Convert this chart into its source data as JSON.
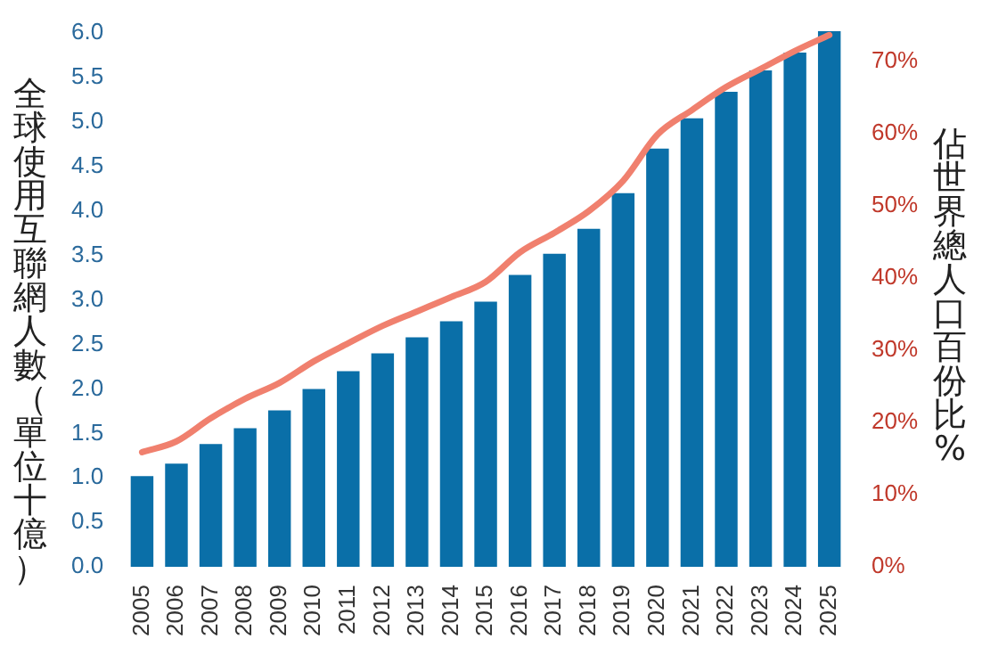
{
  "chart_data": {
    "type": "bar",
    "ylabel": "全球使用互聯網人數（單位十億）",
    "y2label": "佔世界總人口百份比%",
    "categories": [
      "2005",
      "2006",
      "2007",
      "2008",
      "2009",
      "2010",
      "2011",
      "2012",
      "2013",
      "2014",
      "2015",
      "2016",
      "2017",
      "2018",
      "2019",
      "2020",
      "2021",
      "2022",
      "2023",
      "2024",
      "2025"
    ],
    "series": [
      {
        "color": "#0a6fa8",
        "values": [
          1.02,
          1.16,
          1.38,
          1.56,
          1.76,
          2.0,
          2.2,
          2.4,
          2.58,
          2.76,
          2.98,
          3.28,
          3.52,
          3.8,
          4.2,
          4.7,
          5.04,
          5.34,
          5.58,
          5.78,
          6.02
        ]
      },
      {
        "type": "line",
        "axis": "y2",
        "color": "#f0806e",
        "values": [
          15.9,
          17.4,
          20.6,
          23.3,
          25.5,
          28.5,
          31.0,
          33.4,
          35.4,
          37.4,
          39.5,
          43.6,
          46.3,
          49.3,
          53.5,
          59.9,
          63.3,
          66.5,
          69.0,
          71.5,
          73.7
        ]
      }
    ],
    "ylim": [
      0,
      6.05
    ],
    "yticks": [
      {
        "value": 0,
        "label": "0.0"
      },
      0.5,
      {
        "value": 1,
        "label": "1.0"
      },
      1.5,
      {
        "value": 2,
        "label": "2.0"
      },
      2.5,
      {
        "value": 3,
        "label": "3.0"
      },
      3.5,
      {
        "value": 4,
        "label": "4.0"
      },
      4.5,
      {
        "value": 5,
        "label": "5.0"
      },
      5.5,
      {
        "value": 6,
        "label": "6.0"
      }
    ],
    "y2lim": [
      0,
      74.6
    ],
    "y2ticks": [
      {
        "value": 0,
        "label": "0%"
      },
      {
        "value": 10,
        "label": "10%"
      },
      {
        "value": 20,
        "label": "20%"
      },
      {
        "value": 30,
        "label": "30%"
      },
      {
        "value": 40,
        "label": "40%"
      },
      {
        "value": 50,
        "label": "50%"
      },
      {
        "value": 60,
        "label": "60%"
      },
      {
        "value": 70,
        "label": "70%"
      }
    ],
    "grid": false,
    "legend": false,
    "marker": "none",
    "line_style": "solid"
  }
}
